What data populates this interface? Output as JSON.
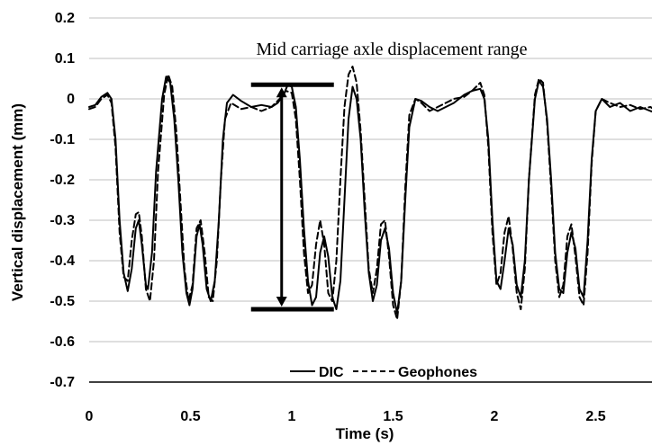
{
  "chart_data": {
    "type": "line",
    "title": "",
    "xlabel": "Time (s)",
    "ylabel": "Vertical displacement (mm)",
    "xlim": [
      0,
      2.8
    ],
    "ylim": [
      -0.7,
      0.2
    ],
    "x_ticks": [
      "0",
      "0.5",
      "1",
      "1.5",
      "2",
      "2.5"
    ],
    "y_ticks": [
      "0.2",
      "0.1",
      "0",
      "-0.1",
      "-0.2",
      "-0.3",
      "-0.4",
      "-0.5",
      "-0.6",
      "-0.7"
    ],
    "grid": "horizontal",
    "legend_position": "bottom-center",
    "annotation": {
      "text": "Mid carriage axle displacement range",
      "range_x": 0.95,
      "range_top": 0.035,
      "range_bottom": -0.52
    },
    "series": [
      {
        "name": "DIC",
        "style": "solid",
        "color": "#000000",
        "points": [
          [
            0.0,
            -0.02
          ],
          [
            0.03,
            -0.015
          ],
          [
            0.06,
            0.005
          ],
          [
            0.09,
            0.015
          ],
          [
            0.11,
            0.0
          ],
          [
            0.13,
            -0.1
          ],
          [
            0.15,
            -0.3
          ],
          [
            0.17,
            -0.43
          ],
          [
            0.19,
            -0.475
          ],
          [
            0.21,
            -0.42
          ],
          [
            0.23,
            -0.32
          ],
          [
            0.245,
            -0.3
          ],
          [
            0.26,
            -0.36
          ],
          [
            0.28,
            -0.46
          ],
          [
            0.29,
            -0.47
          ],
          [
            0.31,
            -0.38
          ],
          [
            0.33,
            -0.18
          ],
          [
            0.36,
            0.0
          ],
          [
            0.38,
            0.055
          ],
          [
            0.4,
            0.04
          ],
          [
            0.42,
            -0.05
          ],
          [
            0.44,
            -0.2
          ],
          [
            0.46,
            -0.38
          ],
          [
            0.48,
            -0.48
          ],
          [
            0.495,
            -0.51
          ],
          [
            0.51,
            -0.47
          ],
          [
            0.53,
            -0.34
          ],
          [
            0.545,
            -0.31
          ],
          [
            0.56,
            -0.36
          ],
          [
            0.58,
            -0.47
          ],
          [
            0.6,
            -0.5
          ],
          [
            0.62,
            -0.45
          ],
          [
            0.64,
            -0.3
          ],
          [
            0.66,
            -0.1
          ],
          [
            0.68,
            -0.01
          ],
          [
            0.71,
            0.01
          ],
          [
            0.75,
            -0.005
          ],
          [
            0.8,
            -0.02
          ],
          [
            0.85,
            -0.015
          ],
          [
            0.9,
            -0.02
          ],
          [
            0.93,
            -0.01
          ],
          [
            0.96,
            0.01
          ],
          [
            0.98,
            0.035
          ],
          [
            1.0,
            0.03
          ],
          [
            1.02,
            -0.02
          ],
          [
            1.04,
            -0.15
          ],
          [
            1.06,
            -0.32
          ],
          [
            1.08,
            -0.45
          ],
          [
            1.1,
            -0.51
          ],
          [
            1.12,
            -0.49
          ],
          [
            1.14,
            -0.38
          ],
          [
            1.16,
            -0.34
          ],
          [
            1.18,
            -0.39
          ],
          [
            1.2,
            -0.49
          ],
          [
            1.22,
            -0.52
          ],
          [
            1.24,
            -0.45
          ],
          [
            1.26,
            -0.25
          ],
          [
            1.28,
            -0.05
          ],
          [
            1.3,
            0.03
          ],
          [
            1.32,
            0.0
          ],
          [
            1.34,
            -0.1
          ],
          [
            1.36,
            -0.28
          ],
          [
            1.38,
            -0.43
          ],
          [
            1.4,
            -0.5
          ],
          [
            1.42,
            -0.46
          ],
          [
            1.44,
            -0.35
          ],
          [
            1.46,
            -0.32
          ],
          [
            1.48,
            -0.37
          ],
          [
            1.5,
            -0.48
          ],
          [
            1.52,
            -0.53
          ],
          [
            1.54,
            -0.45
          ],
          [
            1.56,
            -0.25
          ],
          [
            1.58,
            -0.07
          ],
          [
            1.61,
            0.0
          ],
          [
            1.64,
            -0.005
          ],
          [
            1.68,
            -0.02
          ],
          [
            1.72,
            -0.03
          ],
          [
            1.76,
            -0.02
          ],
          [
            1.8,
            -0.01
          ],
          [
            1.85,
            0.01
          ],
          [
            1.89,
            0.02
          ],
          [
            1.93,
            0.025
          ],
          [
            1.95,
            0.0
          ],
          [
            1.97,
            -0.1
          ],
          [
            1.99,
            -0.3
          ],
          [
            2.01,
            -0.45
          ],
          [
            2.03,
            -0.47
          ],
          [
            2.05,
            -0.4
          ],
          [
            2.07,
            -0.32
          ],
          [
            2.09,
            -0.36
          ],
          [
            2.11,
            -0.46
          ],
          [
            2.13,
            -0.49
          ],
          [
            2.15,
            -0.4
          ],
          [
            2.17,
            -0.2
          ],
          [
            2.2,
            0.0
          ],
          [
            2.22,
            0.045
          ],
          [
            2.24,
            0.03
          ],
          [
            2.26,
            -0.05
          ],
          [
            2.28,
            -0.2
          ],
          [
            2.3,
            -0.38
          ],
          [
            2.32,
            -0.47
          ],
          [
            2.34,
            -0.48
          ],
          [
            2.36,
            -0.38
          ],
          [
            2.38,
            -0.33
          ],
          [
            2.4,
            -0.37
          ],
          [
            2.42,
            -0.47
          ],
          [
            2.44,
            -0.49
          ],
          [
            2.46,
            -0.35
          ],
          [
            2.48,
            -0.15
          ],
          [
            2.5,
            -0.03
          ],
          [
            2.53,
            0.0
          ],
          [
            2.57,
            -0.02
          ],
          [
            2.62,
            -0.01
          ],
          [
            2.67,
            -0.03
          ],
          [
            2.72,
            -0.02
          ],
          [
            2.77,
            -0.03
          ],
          [
            2.8,
            -0.035
          ]
        ]
      },
      {
        "name": "Geophones",
        "style": "dashed",
        "color": "#000000",
        "points": [
          [
            0.0,
            -0.025
          ],
          [
            0.03,
            -0.02
          ],
          [
            0.06,
            0.0
          ],
          [
            0.09,
            0.01
          ],
          [
            0.11,
            -0.01
          ],
          [
            0.13,
            -0.12
          ],
          [
            0.15,
            -0.33
          ],
          [
            0.17,
            -0.44
          ],
          [
            0.19,
            -0.45
          ],
          [
            0.21,
            -0.35
          ],
          [
            0.23,
            -0.285
          ],
          [
            0.245,
            -0.28
          ],
          [
            0.26,
            -0.34
          ],
          [
            0.28,
            -0.47
          ],
          [
            0.3,
            -0.5
          ],
          [
            0.32,
            -0.4
          ],
          [
            0.34,
            -0.18
          ],
          [
            0.37,
            0.01
          ],
          [
            0.39,
            0.06
          ],
          [
            0.41,
            0.03
          ],
          [
            0.43,
            -0.08
          ],
          [
            0.45,
            -0.25
          ],
          [
            0.47,
            -0.42
          ],
          [
            0.49,
            -0.5
          ],
          [
            0.51,
            -0.46
          ],
          [
            0.53,
            -0.32
          ],
          [
            0.55,
            -0.3
          ],
          [
            0.57,
            -0.38
          ],
          [
            0.59,
            -0.49
          ],
          [
            0.61,
            -0.5
          ],
          [
            0.63,
            -0.4
          ],
          [
            0.65,
            -0.2
          ],
          [
            0.67,
            -0.05
          ],
          [
            0.7,
            -0.01
          ],
          [
            0.75,
            -0.025
          ],
          [
            0.8,
            -0.02
          ],
          [
            0.85,
            -0.03
          ],
          [
            0.9,
            -0.02
          ],
          [
            0.94,
            0.0
          ],
          [
            0.97,
            0.02
          ],
          [
            1.0,
            0.015
          ],
          [
            1.02,
            -0.05
          ],
          [
            1.04,
            -0.2
          ],
          [
            1.06,
            -0.38
          ],
          [
            1.08,
            -0.48
          ],
          [
            1.1,
            -0.46
          ],
          [
            1.12,
            -0.36
          ],
          [
            1.14,
            -0.3
          ],
          [
            1.16,
            -0.36
          ],
          [
            1.18,
            -0.48
          ],
          [
            1.2,
            -0.5
          ],
          [
            1.22,
            -0.4
          ],
          [
            1.24,
            -0.2
          ],
          [
            1.26,
            -0.02
          ],
          [
            1.28,
            0.06
          ],
          [
            1.3,
            0.08
          ],
          [
            1.32,
            0.04
          ],
          [
            1.34,
            -0.08
          ],
          [
            1.36,
            -0.25
          ],
          [
            1.38,
            -0.42
          ],
          [
            1.4,
            -0.48
          ],
          [
            1.42,
            -0.42
          ],
          [
            1.44,
            -0.31
          ],
          [
            1.46,
            -0.3
          ],
          [
            1.48,
            -0.39
          ],
          [
            1.5,
            -0.51
          ],
          [
            1.52,
            -0.545
          ],
          [
            1.54,
            -0.45
          ],
          [
            1.56,
            -0.22
          ],
          [
            1.58,
            -0.04
          ],
          [
            1.61,
            0.0
          ],
          [
            1.64,
            -0.01
          ],
          [
            1.68,
            -0.03
          ],
          [
            1.72,
            -0.02
          ],
          [
            1.76,
            -0.01
          ],
          [
            1.8,
            0.0
          ],
          [
            1.85,
            0.005
          ],
          [
            1.89,
            0.02
          ],
          [
            1.93,
            0.04
          ],
          [
            1.95,
            0.01
          ],
          [
            1.97,
            -0.12
          ],
          [
            1.99,
            -0.33
          ],
          [
            2.01,
            -0.46
          ],
          [
            2.03,
            -0.43
          ],
          [
            2.05,
            -0.33
          ],
          [
            2.07,
            -0.29
          ],
          [
            2.09,
            -0.37
          ],
          [
            2.11,
            -0.48
          ],
          [
            2.13,
            -0.52
          ],
          [
            2.15,
            -0.42
          ],
          [
            2.17,
            -0.2
          ],
          [
            2.2,
            0.01
          ],
          [
            2.22,
            0.05
          ],
          [
            2.24,
            0.04
          ],
          [
            2.26,
            -0.06
          ],
          [
            2.28,
            -0.22
          ],
          [
            2.3,
            -0.4
          ],
          [
            2.32,
            -0.49
          ],
          [
            2.34,
            -0.46
          ],
          [
            2.36,
            -0.34
          ],
          [
            2.38,
            -0.31
          ],
          [
            2.4,
            -0.39
          ],
          [
            2.42,
            -0.49
          ],
          [
            2.44,
            -0.51
          ],
          [
            2.46,
            -0.38
          ],
          [
            2.48,
            -0.16
          ],
          [
            2.5,
            -0.03
          ],
          [
            2.53,
            0.0
          ],
          [
            2.57,
            -0.01
          ],
          [
            2.62,
            -0.02
          ],
          [
            2.67,
            -0.015
          ],
          [
            2.72,
            -0.025
          ],
          [
            2.77,
            -0.02
          ],
          [
            2.8,
            -0.03
          ]
        ]
      }
    ]
  }
}
